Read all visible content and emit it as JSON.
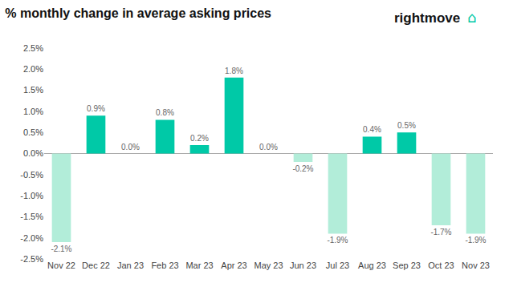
{
  "chart_data": {
    "type": "bar",
    "title": "% monthly change in average asking prices",
    "categories": [
      "Nov 22",
      "Dec 22",
      "Jan 23",
      "Feb 23",
      "Mar 23",
      "Apr 23",
      "May 23",
      "Jun 23",
      "Jul 23",
      "Aug 23",
      "Sep 23",
      "Oct 23",
      "Nov 23"
    ],
    "values": [
      -2.1,
      0.9,
      0.0,
      0.8,
      0.2,
      1.8,
      0.0,
      -0.2,
      -1.9,
      0.4,
      0.5,
      -1.7,
      -1.9
    ],
    "value_labels": [
      "-2.1%",
      "0.9%",
      "0.0%",
      "0.8%",
      "0.2%",
      "1.8%",
      "0.0%",
      "-0.2%",
      "-1.9%",
      "0.4%",
      "0.5%",
      "-1.7%",
      "-1.9%"
    ],
    "data_labels": true,
    "colors": [
      "#b2edd9",
      "#00c9a7",
      "#00c9a7",
      "#00c9a7",
      "#00c9a7",
      "#00c9a7",
      "#00c9a7",
      "#b2edd9",
      "#b2edd9",
      "#00c9a7",
      "#00c9a7",
      "#b2edd9",
      "#b2edd9"
    ],
    "ylim": [
      -2.5,
      2.5
    ],
    "yticks": [
      {
        "value": -2.5,
        "label": "-2.5%"
      },
      {
        "value": -2.0,
        "label": "-2.0%"
      },
      {
        "value": -1.5,
        "label": "-1.5%"
      },
      {
        "value": -1.0,
        "label": "-1.0%"
      },
      {
        "value": -0.5,
        "label": "-0.5%"
      },
      {
        "value": 0.0,
        "label": "0.0%"
      },
      {
        "value": 0.5,
        "label": "0.5%"
      },
      {
        "value": 1.0,
        "label": "1.0%"
      },
      {
        "value": 1.5,
        "label": "1.5%"
      },
      {
        "value": 2.0,
        "label": "2.0%"
      },
      {
        "value": 2.5,
        "label": "2.5%"
      }
    ],
    "grid": false,
    "annotations": [
      "rightmove",
      "⌂"
    ]
  }
}
